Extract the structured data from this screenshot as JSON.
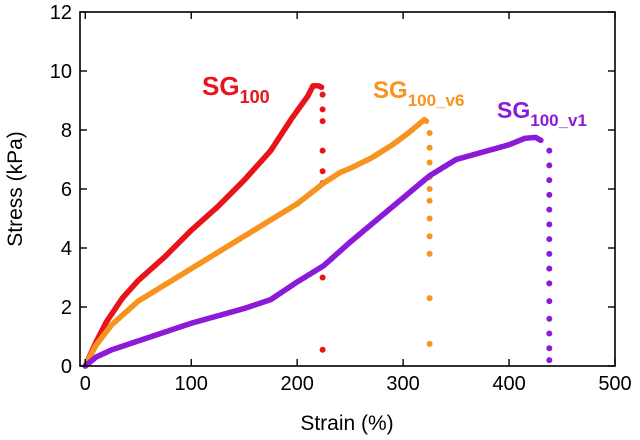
{
  "chart_data": {
    "type": "scatter",
    "title": "",
    "xlabel": "Strain (%)",
    "ylabel": "Stress (kPa)",
    "xlim": [
      -5,
      500
    ],
    "ylim": [
      0,
      12
    ],
    "x_ticks": [
      0,
      100,
      200,
      300,
      400,
      500
    ],
    "y_ticks": [
      0,
      2,
      4,
      6,
      8,
      10,
      12
    ],
    "grid": false,
    "series": [
      {
        "label_main": "SG",
        "label_sub": "100",
        "color": "#e8141b",
        "curve": [
          [
            0,
            0
          ],
          [
            10,
            0.8
          ],
          [
            20,
            1.5
          ],
          [
            35,
            2.3
          ],
          [
            50,
            2.9
          ],
          [
            75,
            3.7
          ],
          [
            100,
            4.6
          ],
          [
            125,
            5.4
          ],
          [
            150,
            6.3
          ],
          [
            175,
            7.3
          ],
          [
            195,
            8.4
          ],
          [
            210,
            9.15
          ],
          [
            215,
            9.5
          ],
          [
            220,
            9.5
          ],
          [
            223,
            9.45
          ]
        ],
        "drop_points": [
          9.2,
          8.7,
          8.3,
          7.3,
          6.6,
          6.2,
          3.0,
          0.55
        ],
        "drop_x": 224
      },
      {
        "label_main": "SG",
        "label_sub": "100_v6",
        "color": "#f7931e",
        "curve": [
          [
            0,
            0
          ],
          [
            10,
            0.7
          ],
          [
            25,
            1.4
          ],
          [
            50,
            2.2
          ],
          [
            75,
            2.75
          ],
          [
            100,
            3.3
          ],
          [
            125,
            3.85
          ],
          [
            150,
            4.4
          ],
          [
            175,
            4.95
          ],
          [
            200,
            5.5
          ],
          [
            225,
            6.2
          ],
          [
            240,
            6.55
          ],
          [
            250,
            6.7
          ],
          [
            270,
            7.05
          ],
          [
            290,
            7.5
          ],
          [
            305,
            7.9
          ],
          [
            315,
            8.2
          ],
          [
            320,
            8.35
          ],
          [
            322,
            8.3
          ]
        ],
        "drop_points": [
          7.9,
          7.4,
          6.9,
          6.4,
          6.0,
          5.6,
          5.0,
          4.4,
          3.8,
          2.3,
          0.75
        ],
        "drop_x": 325
      },
      {
        "label_main": "SG",
        "label_sub": "100_v1",
        "color": "#8b1bd9",
        "curve": [
          [
            0,
            0
          ],
          [
            10,
            0.3
          ],
          [
            25,
            0.55
          ],
          [
            50,
            0.85
          ],
          [
            75,
            1.15
          ],
          [
            100,
            1.45
          ],
          [
            125,
            1.7
          ],
          [
            150,
            1.95
          ],
          [
            175,
            2.25
          ],
          [
            200,
            2.85
          ],
          [
            225,
            3.4
          ],
          [
            250,
            4.2
          ],
          [
            275,
            4.95
          ],
          [
            300,
            5.7
          ],
          [
            325,
            6.45
          ],
          [
            350,
            7.0
          ],
          [
            375,
            7.25
          ],
          [
            400,
            7.5
          ],
          [
            415,
            7.72
          ],
          [
            425,
            7.75
          ],
          [
            430,
            7.65
          ]
        ],
        "drop_points": [
          7.3,
          6.8,
          6.3,
          5.8,
          5.3,
          4.8,
          4.3,
          3.8,
          3.3,
          2.8,
          2.2,
          1.6,
          1.1,
          0.6,
          0.2
        ],
        "drop_x": 438
      }
    ]
  }
}
